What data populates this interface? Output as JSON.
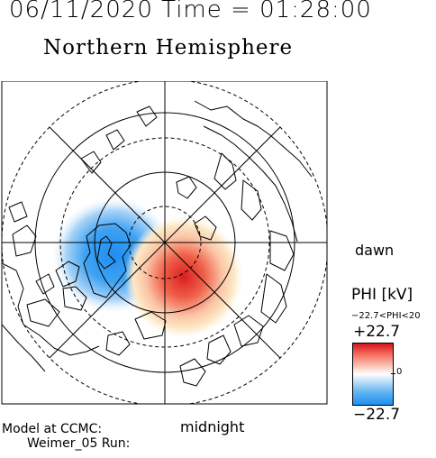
{
  "header": {
    "datetime": "06/11/2020 Time = 01:28:00"
  },
  "map": {
    "title": "Northern Hemisphere",
    "dawn_label": "dawn",
    "midnight_label": "midnight"
  },
  "legend": {
    "title": "PHI [kV]",
    "range_text": "−22.7<PHI<20",
    "max_label": "+22.7",
    "zero_label": "0",
    "min_label": "−22.7",
    "colors": {
      "positive": "#d7131e",
      "neutral": "#ffffff",
      "negative": "#1f8ff0"
    }
  },
  "footer": {
    "line1": "Model at CCMC:",
    "line2": "Weimer_05 Run:"
  }
}
